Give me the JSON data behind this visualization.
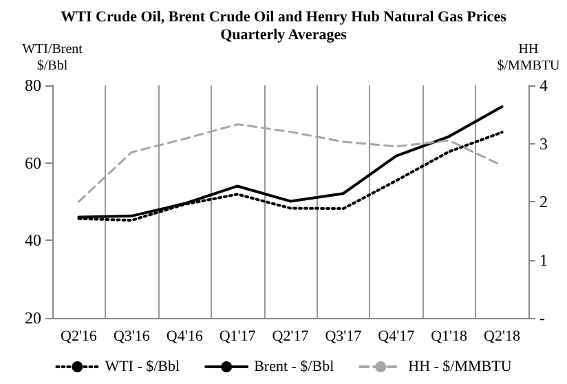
{
  "chart_data": {
    "type": "line",
    "title": "WTI Crude Oil, Brent Crude Oil and Henry Hub Natural Gas Prices",
    "subtitle": "Quarterly Averages",
    "ylabel": "WTI/Brent\n$/Bbl",
    "y2label": "HH\n$/MMBTU",
    "categories": [
      "Q2'16",
      "Q3'16",
      "Q4'16",
      "Q1'17",
      "Q2'17",
      "Q3'17",
      "Q4'17",
      "Q1'18",
      "Q2'18"
    ],
    "series": [
      {
        "name": "WTI - $/Bbl",
        "color": "#000000",
        "line_style": "dotted",
        "values": [
          45.6,
          45.2,
          49.3,
          51.9,
          48.3,
          48.2,
          55.4,
          62.9,
          67.9
        ]
      },
      {
        "name": "Brent - $/Bbl",
        "color": "#000000",
        "line_style": "solid",
        "values": [
          46,
          46.3,
          49.5,
          54,
          50.1,
          52.1,
          61.8,
          66.8,
          74.5
        ]
      },
      {
        "name": "HH - $/MMBTU",
        "color": "#a6a6a6",
        "line_style": "dashed",
        "axis": "y2",
        "values": [
          2.0,
          2.85,
          3.08,
          3.33,
          3.2,
          3.03,
          2.95,
          3.05,
          2.62
        ]
      }
    ],
    "ylim": [
      20,
      80
    ],
    "yticks": [
      20,
      40,
      60,
      80
    ],
    "y2lim": [
      0,
      4
    ],
    "y2ticks": [
      {
        "value": 0,
        "label": "-"
      },
      1,
      2,
      3,
      4
    ],
    "grid": "x",
    "legend": "bottom",
    "marker": "none"
  }
}
